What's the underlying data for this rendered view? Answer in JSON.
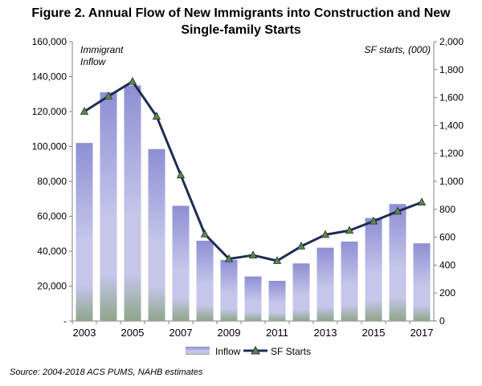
{
  "title_line1": "Figure 2. Annual Flow of New Immigrants into Construction and New",
  "title_line2": "Single-family Starts",
  "source": "Source: 2004-2018 ACS PUMS, NAHB estimates",
  "chart_data": {
    "type": "bar",
    "categories": [
      "2003",
      "2004",
      "2005",
      "2006",
      "2007",
      "2008",
      "2009",
      "2010",
      "2011",
      "2012",
      "2013",
      "2014",
      "2015",
      "2016",
      "2017"
    ],
    "series": [
      {
        "name": "Inflow",
        "type": "bar",
        "axis": "left",
        "values": [
          102000,
          131000,
          135000,
          98500,
          66000,
          46000,
          35000,
          25500,
          23000,
          33000,
          42000,
          45500,
          59000,
          67000,
          44500
        ]
      },
      {
        "name": "SF Starts",
        "type": "line",
        "axis": "right",
        "values": [
          1500,
          1610,
          1715,
          1465,
          1045,
          622,
          445,
          471,
          431,
          535,
          618,
          648,
          715,
          785,
          850
        ]
      }
    ],
    "x_tick_labels": [
      "2003",
      "2005",
      "2007",
      "2009",
      "2011",
      "2013",
      "2015",
      "2017"
    ],
    "y_left": {
      "label_top": "Immigrant",
      "label_bottom": "Inflow",
      "range": [
        0,
        160000
      ],
      "ticks": [
        "-",
        "20,000",
        "40,000",
        "60,000",
        "80,000",
        "100,000",
        "120,000",
        "140,000",
        "160,000"
      ]
    },
    "y_right": {
      "label": "SF starts, (000)",
      "range": [
        0,
        2000
      ],
      "ticks": [
        "0",
        "200",
        "400",
        "600",
        "800",
        "1,000",
        "1,200",
        "1,400",
        "1,600",
        "1,800",
        "2,000"
      ]
    },
    "legend": [
      "Inflow",
      "SF Starts"
    ],
    "colors": {
      "bar_top": "#8d8fd3",
      "bar_mid": "#c5c6ea",
      "bar_bottom": "#8fa58a",
      "line": "#1f2d52",
      "marker": "#5f8a3a"
    }
  }
}
